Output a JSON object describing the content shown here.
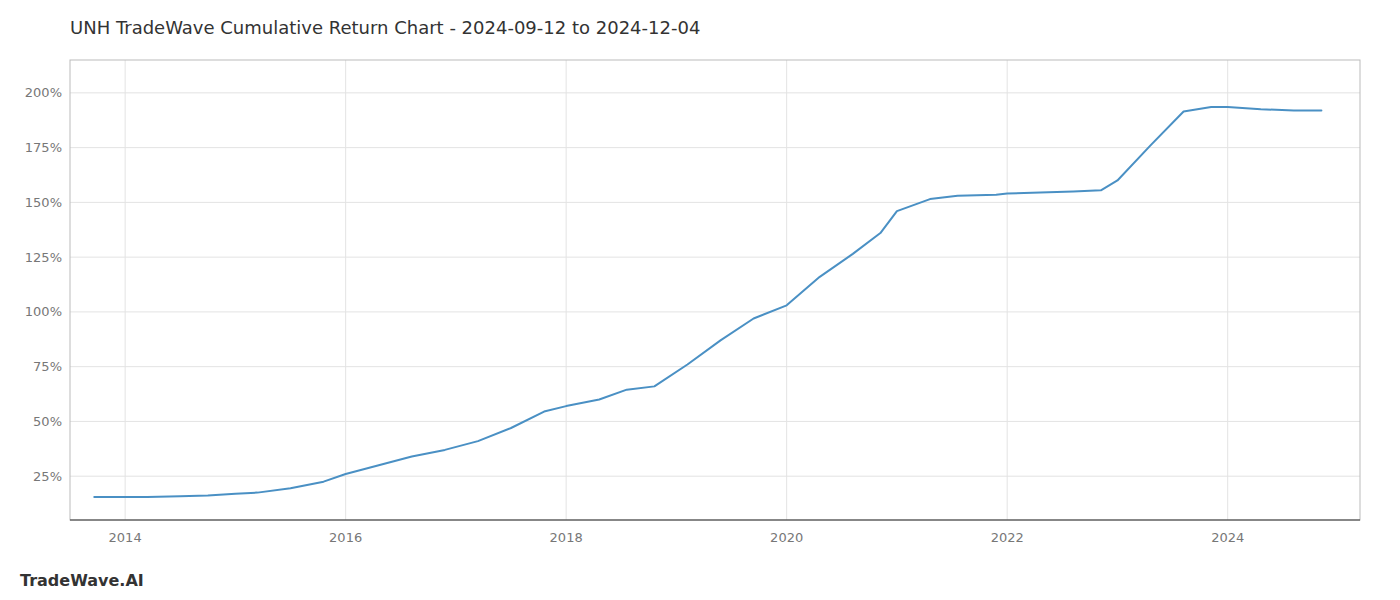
{
  "chart_data": {
    "type": "line",
    "title": "UNH TradeWave Cumulative Return Chart - 2024-09-12 to 2024-12-04",
    "annotations": [
      "TradeWave.AI"
    ],
    "color": "#4a90c4",
    "grid": true,
    "x": [
      2013.72,
      2014.0,
      2014.2,
      2014.5,
      2014.75,
      2015.0,
      2015.2,
      2015.5,
      2015.8,
      2016.0,
      2016.3,
      2016.6,
      2016.9,
      2017.2,
      2017.5,
      2017.8,
      2018.0,
      2018.3,
      2018.55,
      2018.8,
      2019.1,
      2019.4,
      2019.7,
      2020.0,
      2020.3,
      2020.6,
      2020.85,
      2021.0,
      2021.3,
      2021.55,
      2021.9,
      2022.0,
      2022.3,
      2022.6,
      2022.85,
      2023.0,
      2023.3,
      2023.6,
      2023.85,
      2024.0,
      2024.3,
      2024.6,
      2024.85
    ],
    "values": [
      15.5,
      15.5,
      15.5,
      15.8,
      16.2,
      17.0,
      17.5,
      19.5,
      22.5,
      26.0,
      30.0,
      34.0,
      37.0,
      41.0,
      47.0,
      54.5,
      57.0,
      60.0,
      64.5,
      66.0,
      76.0,
      87.0,
      97.0,
      103.0,
      116.0,
      126.5,
      136.0,
      146.0,
      151.5,
      153.0,
      153.5,
      154.0,
      154.5,
      155.0,
      155.5,
      160.0,
      176.0,
      191.5,
      193.5,
      193.5,
      192.5,
      192.0,
      192.0
    ],
    "xlim": [
      2013.5,
      2025.2
    ],
    "ylim": [
      5,
      215
    ],
    "xticks": [
      2014,
      2016,
      2018,
      2020,
      2022,
      2024
    ],
    "yticks": [
      {
        "value": 25,
        "label": "25%"
      },
      {
        "value": 50,
        "label": "50%"
      },
      {
        "value": 75,
        "label": "75%"
      },
      {
        "value": 100,
        "label": "100%"
      },
      {
        "value": 125,
        "label": "125%"
      },
      {
        "value": 150,
        "label": "150%"
      },
      {
        "value": 175,
        "label": "175%"
      },
      {
        "value": 200,
        "label": "200%"
      }
    ]
  }
}
